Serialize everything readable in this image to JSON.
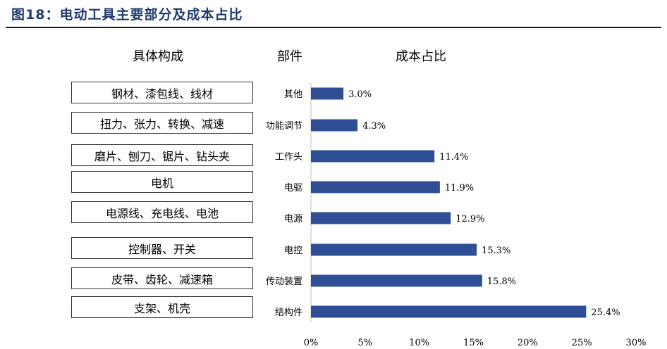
{
  "figure": {
    "title": "图18：电动工具主要部分及成本占比"
  },
  "headers": {
    "components": "具体构成",
    "parts": "部件",
    "cost_share": "成本占比"
  },
  "components": [
    "钢材、漆包线、线材",
    "扭力、张力、转换、减速",
    "磨片、刨刀、锯片、钻头夹",
    "电机",
    "电源线、充电线、电池",
    "控制器、开关",
    "皮带、齿轮、减速箱",
    "支架、机壳"
  ],
  "chart_data": {
    "type": "bar",
    "orientation": "horizontal",
    "categories": [
      "其他",
      "功能调节",
      "工作头",
      "电驱",
      "电源",
      "电控",
      "传动装置",
      "结构件"
    ],
    "values": [
      3.0,
      4.3,
      11.4,
      11.9,
      12.9,
      15.3,
      15.8,
      25.4
    ],
    "value_labels": [
      "3.0%",
      "4.3%",
      "11.4%",
      "11.9%",
      "12.9%",
      "15.3%",
      "15.8%",
      "25.4%"
    ],
    "xlim": [
      0,
      30
    ],
    "x_ticks": [
      0,
      5,
      10,
      15,
      20,
      25,
      30
    ],
    "x_tick_labels": [
      "0%",
      "5%",
      "10%",
      "15%",
      "20%",
      "25%",
      "30%"
    ],
    "bar_color": "#2e4f93",
    "grid": false,
    "legend": false
  }
}
